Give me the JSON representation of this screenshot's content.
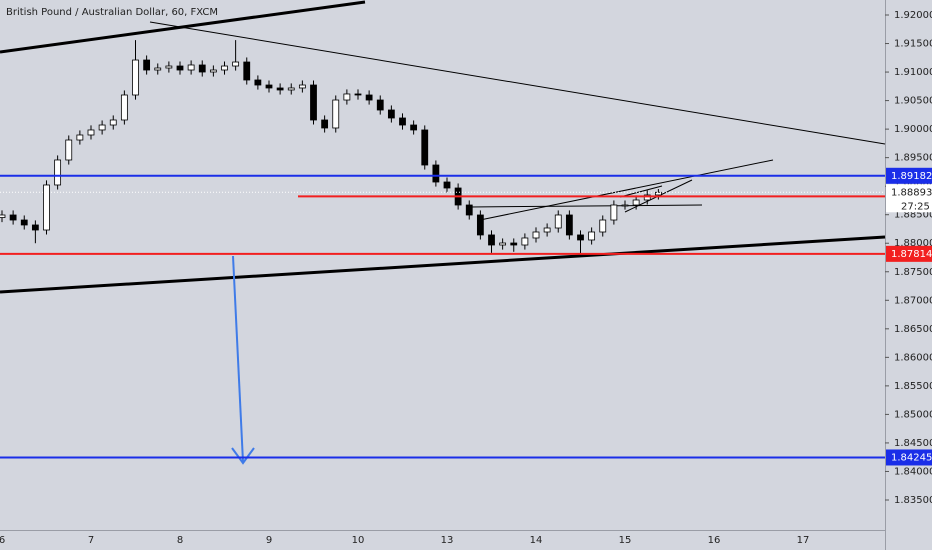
{
  "chart_data": {
    "type": "candlestick",
    "title": "British Pound / Australian Dollar, 60, FXCM",
    "countdown": "27:25",
    "up_color": "#ffffff",
    "down_color": "#000000",
    "wick_color": "#000000",
    "categories": [
      "6",
      null,
      null,
      null,
      null,
      null,
      null,
      null,
      "7",
      null,
      null,
      null,
      null,
      null,
      null,
      null,
      "8",
      null,
      null,
      null,
      null,
      null,
      null,
      null,
      "9",
      null,
      null,
      null,
      null,
      null,
      null,
      null,
      "10",
      null,
      null,
      null,
      null,
      null,
      null,
      null,
      "13",
      null,
      null,
      null,
      null,
      null,
      null,
      null,
      "14",
      null,
      null,
      null,
      null,
      null,
      null,
      null,
      "15",
      null,
      null,
      null,
      null,
      null,
      null,
      null,
      "16",
      null,
      null,
      null,
      null,
      null,
      null,
      null,
      "17"
    ],
    "open": [
      1.8845,
      1.88495,
      1.88407,
      1.8832,
      1.88232,
      1.89021,
      1.89459,
      1.89809,
      1.89897,
      1.89985,
      1.90072,
      1.9016,
      1.90598,
      1.91211,
      1.91036,
      1.91071,
      1.91106,
      1.91036,
      1.91124,
      1.91001,
      1.91036,
      1.91106,
      1.91176,
      1.90861,
      1.90773,
      1.90721,
      1.90686,
      1.90721,
      1.90773,
      1.9016,
      1.9002,
      1.9051,
      1.90616,
      1.90598,
      1.9051,
      1.90335,
      1.90195,
      1.90072,
      1.89985,
      1.89371,
      1.89073,
      1.88968,
      1.8867,
      1.88495,
      1.88145,
      1.87969,
      1.88004,
      1.87969,
      1.88092,
      1.88197,
      1.88267,
      1.88495,
      1.88145,
      1.88057,
      1.88197,
      1.88407,
      1.8867,
      1.8867,
      1.88758,
      1.88846,
      null,
      null,
      null,
      null,
      null,
      null,
      null,
      null,
      null,
      null,
      null,
      null,
      null
    ],
    "high": [
      1.88575,
      1.88575,
      1.88487,
      1.884,
      1.89101,
      1.89539,
      1.89889,
      1.89977,
      1.90065,
      1.90152,
      1.9024,
      1.90678,
      1.9156,
      1.91291,
      1.91151,
      1.91186,
      1.91186,
      1.91204,
      1.91204,
      1.91116,
      1.91186,
      1.9156,
      1.91256,
      1.90941,
      1.90853,
      1.90801,
      1.90801,
      1.90853,
      1.90853,
      1.9024,
      1.9059,
      1.90696,
      1.90696,
      1.90678,
      1.9059,
      1.90415,
      1.90275,
      1.90152,
      1.90065,
      1.89451,
      1.89153,
      1.89048,
      1.8875,
      1.88575,
      1.88225,
      1.88084,
      1.88084,
      1.88172,
      1.88277,
      1.88347,
      1.88575,
      1.88575,
      1.88225,
      1.88277,
      1.88487,
      1.8875,
      1.8875,
      1.88838,
      1.88926,
      1.8895,
      null,
      null,
      null,
      null,
      null,
      null,
      null,
      null,
      null,
      null,
      null,
      null,
      null
    ],
    "low": [
      1.8837,
      1.88327,
      1.8824,
      1.88,
      1.88152,
      1.88941,
      1.89379,
      1.89729,
      1.89817,
      1.89905,
      1.89992,
      1.9008,
      1.90518,
      1.90956,
      1.90956,
      1.90991,
      1.90956,
      1.90956,
      1.90921,
      1.90921,
      1.90956,
      1.91026,
      1.90781,
      1.90693,
      1.90641,
      1.90606,
      1.90606,
      1.90641,
      1.9008,
      1.8994,
      1.8994,
      1.9043,
      1.90518,
      1.9043,
      1.90255,
      1.90115,
      1.89992,
      1.89905,
      1.89291,
      1.88993,
      1.88888,
      1.8859,
      1.88415,
      1.88065,
      1.8783,
      1.87889,
      1.8785,
      1.87889,
      1.88012,
      1.88117,
      1.88187,
      1.88065,
      1.878,
      1.87977,
      1.88117,
      1.88327,
      1.8859,
      1.8859,
      1.88678,
      1.88766,
      null,
      null,
      null,
      null,
      null,
      null,
      null,
      null,
      null,
      null,
      null,
      null,
      null
    ],
    "close": [
      1.88495,
      1.88407,
      1.8832,
      1.88232,
      1.89021,
      1.89459,
      1.89809,
      1.89897,
      1.89985,
      1.90072,
      1.9016,
      1.90598,
      1.91211,
      1.91036,
      1.91071,
      1.91106,
      1.91036,
      1.91124,
      1.91001,
      1.91036,
      1.91106,
      1.91176,
      1.90861,
      1.90773,
      1.90721,
      1.90686,
      1.90721,
      1.90773,
      1.9016,
      1.9002,
      1.9051,
      1.90616,
      1.90598,
      1.9051,
      1.90335,
      1.90195,
      1.90072,
      1.89985,
      1.89371,
      1.89073,
      1.88968,
      1.8867,
      1.88495,
      1.88145,
      1.87969,
      1.88004,
      1.87969,
      1.88092,
      1.88197,
      1.88267,
      1.88495,
      1.88145,
      1.88057,
      1.88197,
      1.88407,
      1.8867,
      1.8867,
      1.88758,
      1.88846,
      1.88893,
      null,
      null,
      null,
      null,
      null,
      null,
      null,
      null,
      null,
      null,
      null,
      null,
      null
    ],
    "levels": [
      {
        "value": 1.89182,
        "color": "#1a2ee8"
      },
      {
        "value": 1.88822,
        "color": "#f21f1f"
      },
      {
        "value": 1.87814,
        "color": "#f21f1f"
      },
      {
        "value": 1.84245,
        "color": "#1a2ee8"
      }
    ],
    "ylim": [
      1.82974,
      1.92263
    ],
    "yticks": [
      {
        "value": 1.92,
        "label": "1.92000"
      },
      {
        "value": 1.915,
        "label": "1.91500"
      },
      {
        "value": 1.91,
        "label": "1.91000"
      },
      {
        "value": 1.905,
        "label": "1.90500"
      },
      {
        "value": 1.9,
        "label": "1.90000"
      },
      {
        "value": 1.895,
        "label": "1.89500"
      },
      {
        "value": 1.89,
        "label": "1.89000"
      },
      {
        "value": 1.885,
        "label": "1.88500"
      },
      {
        "value": 1.88,
        "label": "1.88000"
      },
      {
        "value": 1.875,
        "label": "1.87500"
      },
      {
        "value": 1.87,
        "label": "1.87000"
      },
      {
        "value": 1.865,
        "label": "1.86500"
      },
      {
        "value": 1.86,
        "label": "1.86000"
      },
      {
        "value": 1.855,
        "label": "1.85500"
      },
      {
        "value": 1.85,
        "label": "1.85000"
      },
      {
        "value": 1.845,
        "label": "1.84500"
      },
      {
        "value": 1.84,
        "label": "1.84000"
      },
      {
        "value": 1.835,
        "label": "1.83500"
      }
    ]
  }
}
